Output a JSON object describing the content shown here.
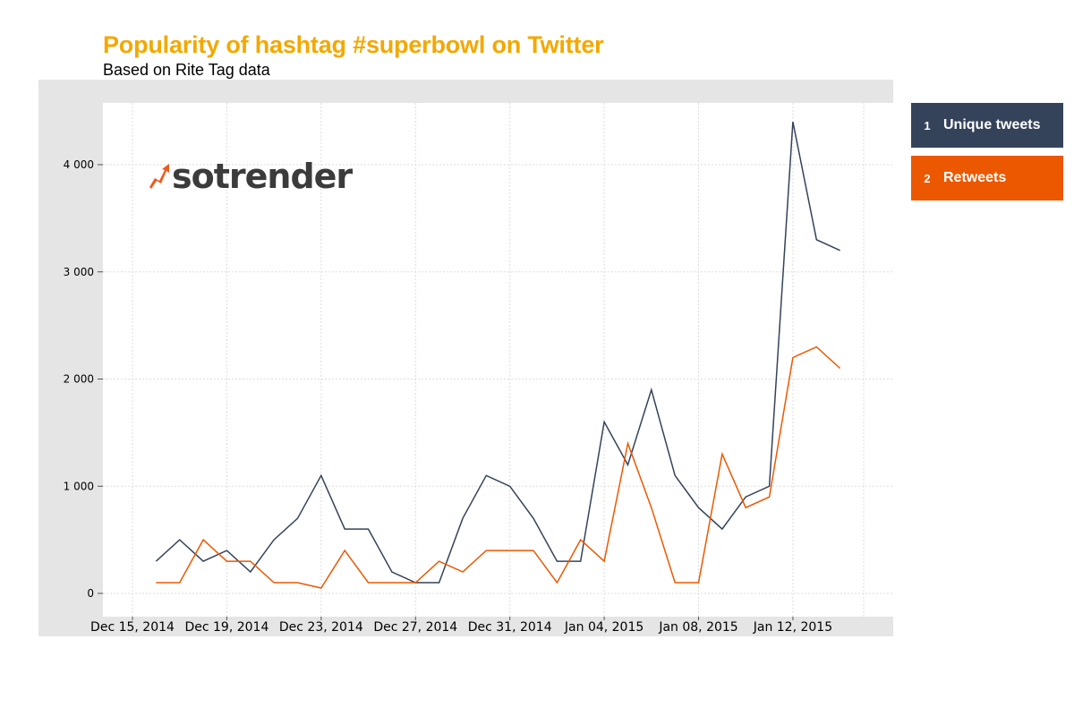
{
  "title": "Popularity of hashtag #superbowl on Twitter",
  "subtitle": "Based on Rite Tag data",
  "logo": {
    "text": "sotrender",
    "accent": "#ef5a1e",
    "color": "#3b3b3b"
  },
  "legend": [
    {
      "num": "1",
      "label": "Unique tweets",
      "color": "#34435a"
    },
    {
      "num": "2",
      "label": "Retweets",
      "color": "#ec5800"
    }
  ],
  "chart_data": {
    "type": "line",
    "x_ticks": [
      "Dec 15, 2014",
      "Dec 19, 2014",
      "Dec 23, 2014",
      "Dec 27, 2014",
      "Dec 31, 2014",
      "Jan 04, 2015",
      "Jan 08, 2015",
      "Jan 12, 2015"
    ],
    "x": [
      "2014-12-16",
      "2014-12-17",
      "2014-12-18",
      "2014-12-19",
      "2014-12-20",
      "2014-12-21",
      "2014-12-22",
      "2014-12-23",
      "2014-12-24",
      "2014-12-25",
      "2014-12-26",
      "2014-12-27",
      "2014-12-28",
      "2014-12-29",
      "2014-12-30",
      "2014-12-31",
      "2015-01-01",
      "2015-01-02",
      "2015-01-03",
      "2015-01-04",
      "2015-01-05",
      "2015-01-06",
      "2015-01-07",
      "2015-01-08",
      "2015-01-09",
      "2015-01-10",
      "2015-01-11",
      "2015-01-12",
      "2015-01-13",
      "2015-01-14",
      "2015-01-15"
    ],
    "series": [
      {
        "name": "Unique tweets",
        "color": "#34435a",
        "values": [
          300,
          500,
          300,
          400,
          200,
          500,
          700,
          1100,
          600,
          600,
          200,
          100,
          100,
          700,
          1100,
          1000,
          700,
          300,
          300,
          1600,
          1200,
          1900,
          1100,
          800,
          600,
          900,
          1000,
          4400,
          3300,
          3200,
          null
        ]
      },
      {
        "name": "Retweets",
        "color": "#ec5800",
        "values": [
          100,
          100,
          500,
          300,
          300,
          100,
          100,
          50,
          400,
          100,
          100,
          100,
          300,
          200,
          400,
          400,
          400,
          100,
          500,
          300,
          1400,
          800,
          100,
          100,
          1300,
          800,
          900,
          2200,
          2300,
          2100,
          null
        ]
      }
    ],
    "y_ticks": [
      "0",
      "1 000",
      "2 000",
      "3 000",
      "4 000"
    ],
    "y_tick_values": [
      0,
      1000,
      2000,
      3000,
      4000
    ],
    "ylim": [
      -100,
      4600
    ],
    "xlim": [
      "2014-12-15",
      "2015-01-15"
    ],
    "grid": true
  }
}
